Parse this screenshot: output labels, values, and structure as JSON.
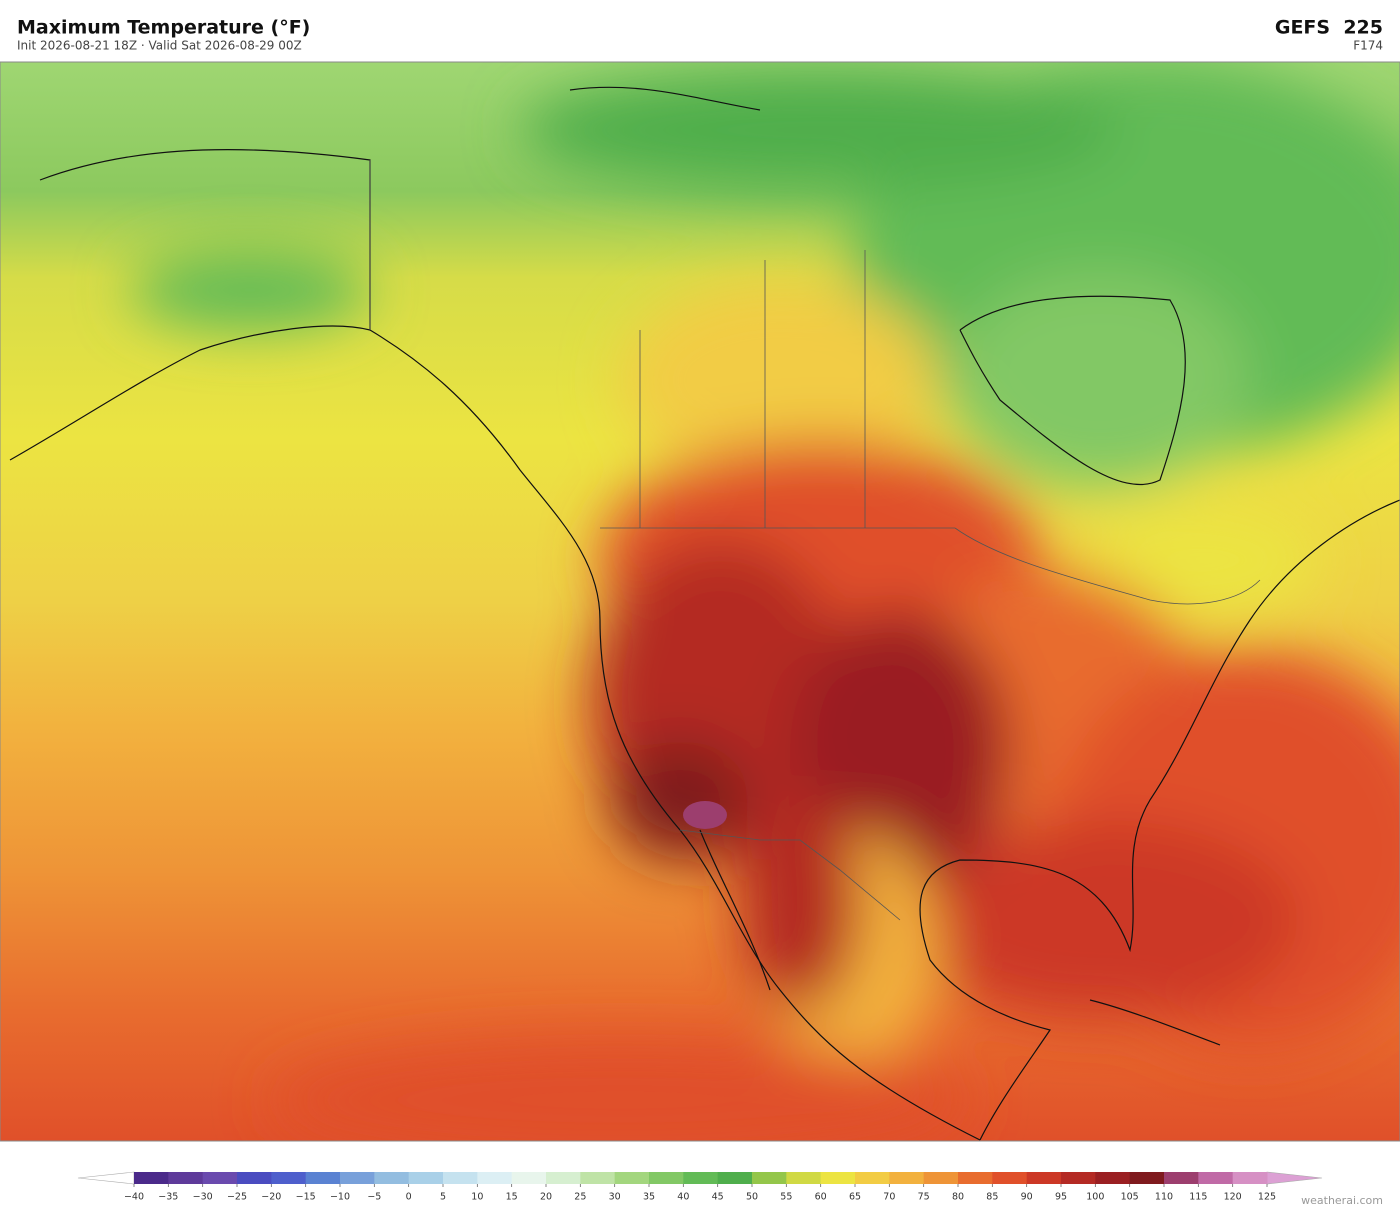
{
  "header": {
    "title": "Maximum Temperature  (°F)",
    "subtitle": "Init 2026-08-21 18Z   ·   Valid Sat 2026-08-29 00Z",
    "model": "GEFS  225",
    "forecast_hour": "F174"
  },
  "colorbar": {
    "ticks": [
      {
        "value": -40,
        "label": "−40"
      },
      {
        "value": -35,
        "label": "−35"
      },
      {
        "value": -30,
        "label": "−30"
      },
      {
        "value": -25,
        "label": "−25"
      },
      {
        "value": -20,
        "label": "−20"
      },
      {
        "value": -15,
        "label": "−15"
      },
      {
        "value": -10,
        "label": "−10"
      },
      {
        "value": -5,
        "label": "−5"
      },
      0,
      5,
      10,
      15,
      20,
      25,
      30,
      35,
      40,
      45,
      50,
      55,
      60,
      65,
      70,
      75,
      80,
      85,
      90,
      95,
      100,
      105,
      110,
      115,
      120,
      125
    ],
    "colors": [
      "#4b2a8a",
      "#5e3a9a",
      "#6a4aae",
      "#4a4cc0",
      "#4e5fcc",
      "#5a82d2",
      "#78a0da",
      "#93bde0",
      "#a9d0e8",
      "#c5e2ef",
      "#dceff4",
      "#e8f5ec",
      "#d6efd0",
      "#bfe3a6",
      "#a3d67e",
      "#82c865",
      "#62bb56",
      "#4fae4c",
      "#94c64a",
      "#d0d944",
      "#ece442",
      "#f2cc44",
      "#f2b13e",
      "#ee9437",
      "#e86c2e",
      "#e0502a",
      "#cc3826",
      "#b42a24",
      "#9a1f22",
      "#7f1a1e",
      "#9c3e6e",
      "#c06aa6",
      "#d690c4"
    ],
    "under_color": "#ffffff",
    "over_color": "#dca0d4"
  },
  "footer": {
    "credit": "weatherai.com"
  }
}
